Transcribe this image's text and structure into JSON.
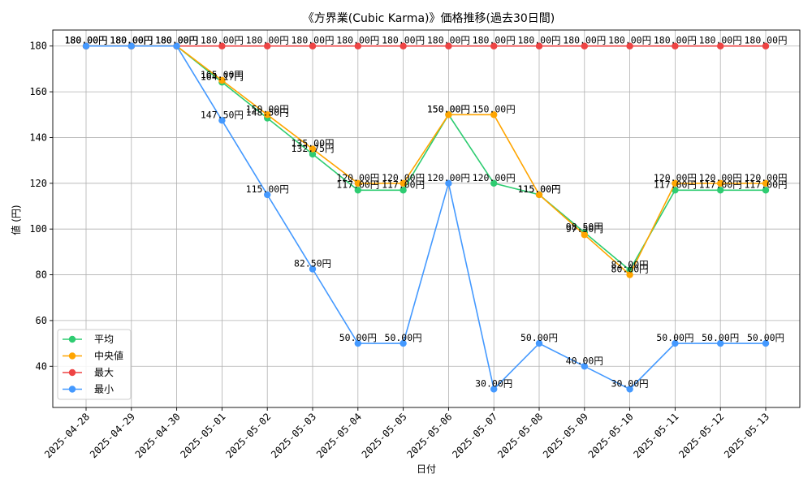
{
  "chart_data": {
    "type": "line",
    "title": "《方界業(Cubic Karma)》価格推移(過去30日間)",
    "xlabel": "日付",
    "ylabel": "値 (円)",
    "ylim": [
      22,
      187
    ],
    "yticks": [
      40,
      60,
      80,
      100,
      120,
      140,
      160,
      180
    ],
    "grid": true,
    "legend_position": "lower-left",
    "label_suffix": "円",
    "categories": [
      "2025-04-28",
      "2025-04-29",
      "2025-04-30",
      "2025-05-01",
      "2025-05-02",
      "2025-05-03",
      "2025-05-04",
      "2025-05-05",
      "2025-05-06",
      "2025-05-07",
      "2025-05-08",
      "2025-05-09",
      "2025-05-10",
      "2025-05-11",
      "2025-05-12",
      "2025-05-13"
    ],
    "series": [
      {
        "name": "平均",
        "color": "#2ecc71",
        "values": [
          180,
          180,
          180,
          164.17,
          148.5,
          132.75,
          117,
          117,
          150,
          120,
          115,
          98.5,
          82,
          117,
          117,
          117
        ]
      },
      {
        "name": "中央値",
        "color": "#ffa500",
        "values": [
          180,
          180,
          180,
          165,
          150,
          135,
          120,
          120,
          150,
          150,
          115,
          97.5,
          80,
          120,
          120,
          120
        ]
      },
      {
        "name": "最大",
        "color": "#ee4444",
        "values": [
          180,
          180,
          180,
          180,
          180,
          180,
          180,
          180,
          180,
          180,
          180,
          180,
          180,
          180,
          180,
          180
        ]
      },
      {
        "name": "最小",
        "color": "#4499ff",
        "values": [
          180,
          180,
          180,
          147.5,
          115,
          82.5,
          50,
          50,
          120,
          30,
          50,
          40,
          30,
          50,
          50,
          50
        ]
      }
    ]
  }
}
